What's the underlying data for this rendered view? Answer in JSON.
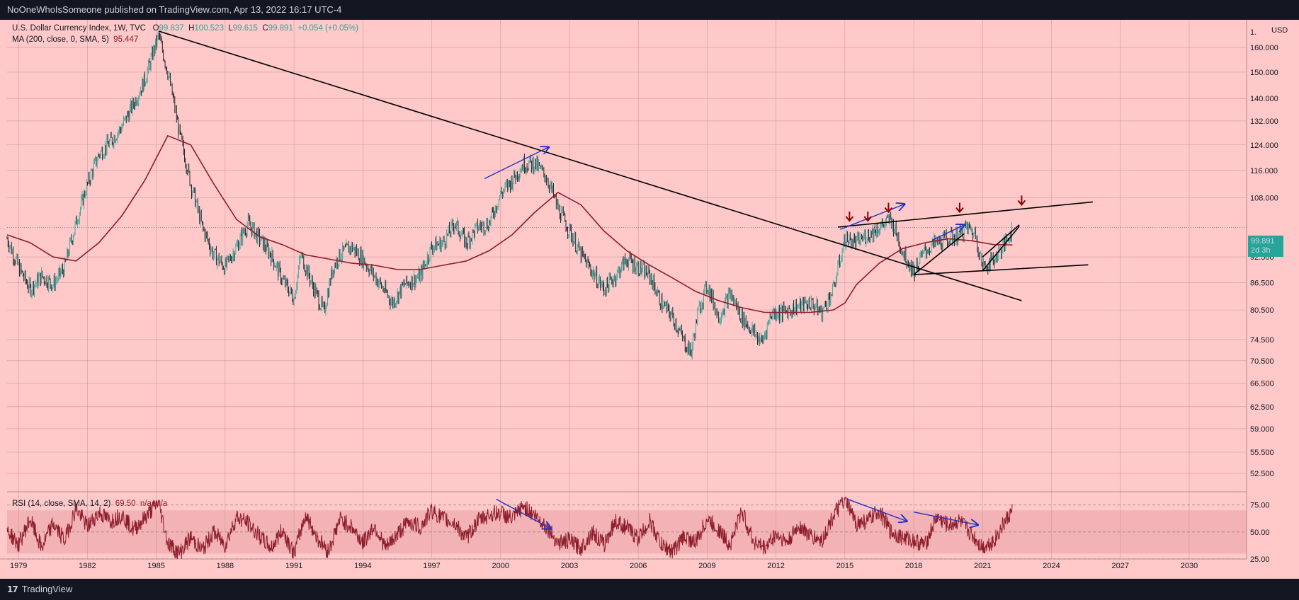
{
  "header": {
    "published": "NoOneWhoIsSomeone published on TradingView.com, Apr 13, 2022 16:17 UTC-4"
  },
  "footer": {
    "brand": "TradingView",
    "logo_icon": "tradingview-logo-icon"
  },
  "legend": {
    "symbol": "U.S. Dollar Currency Index, 1W, TVC",
    "open_label": "O",
    "open": "99.837",
    "high_label": "H",
    "high": "100.523",
    "low_label": "L",
    "low": "99.615",
    "close_label": "C",
    "close": "99.891",
    "change": "+0.054 (+0.05%)",
    "ma_label": "MA (200, close, 0, SMA, 5)",
    "ma_value": "95.447",
    "rsi_label": "RSI (14, close, SMA, 14, 2)",
    "rsi_value": "69.50",
    "rsi_na": "n/a",
    "rsi_na2": "n/a"
  },
  "price_axis": {
    "currency": "USD",
    "current_price": "99.891",
    "countdown": "2d 3h",
    "colors": {
      "background": "#ffc9c9",
      "up": "#26a69a",
      "down": "#131722",
      "ma": "#8e1c2a",
      "rsi": "#8e1c2a",
      "trend": "#000000",
      "arrow_blue": "#1f33c9",
      "arrow_red": "#8b0000"
    }
  },
  "chart_data": [
    {
      "type": "line",
      "panel": "price",
      "scale": "log",
      "title": "",
      "xlabel": "",
      "ylabel": "",
      "x_ticks": [
        "1979",
        "1982",
        "1985",
        "1988",
        "1991",
        "1994",
        "1997",
        "2000",
        "2003",
        "2006",
        "2009",
        "2012",
        "2015",
        "2018",
        "2021",
        "2024",
        "2027",
        "2030"
      ],
      "y_ticks": [
        "1.",
        "160.000",
        "150.000",
        "140.000",
        "132.000",
        "124.000",
        "116.000",
        "108.000",
        "99.891",
        "92.500",
        "86.500",
        "80.500",
        "74.500",
        "70.500",
        "66.500",
        "62.500",
        "59.000",
        "55.500",
        "52.500"
      ],
      "ylim": [
        50.5,
        172
      ],
      "xlim": [
        1978.5,
        2032.5
      ],
      "grid": true,
      "series": [
        {
          "x": [
            1978.5,
            1979.0,
            1979.5,
            1980.0,
            1980.5,
            1981.0,
            1981.5,
            1982.0,
            1982.5,
            1983.0,
            1983.5,
            1984.0,
            1984.5,
            1985.1,
            1985.5,
            1986.0,
            1986.5,
            1987.0,
            1987.5,
            1988.0,
            1988.5,
            1989.0,
            1989.5,
            1990.0,
            1990.5,
            1991.0,
            1991.3,
            1991.8,
            1992.3,
            1992.7,
            1993.0,
            1993.5,
            1994.0,
            1994.5,
            1995.3,
            1995.8,
            1996.5,
            1997.0,
            1997.5,
            1998.0,
            1998.5,
            1999.0,
            1999.5,
            2000.0,
            2000.5,
            2001.0,
            2001.5,
            2002.0,
            2002.5,
            2003.0,
            2003.5,
            2004.0,
            2004.5,
            2005.0,
            2005.5,
            2006.0,
            2006.5,
            2007.0,
            2007.5,
            2008.0,
            2008.3,
            2008.6,
            2009.0,
            2009.5,
            2010.0,
            2010.5,
            2011.0,
            2011.4,
            2011.8,
            2012.3,
            2012.8,
            2013.5,
            2014.0,
            2014.5,
            2015.0,
            2015.5,
            2016.0,
            2016.5,
            2017.0,
            2017.5,
            2018.0,
            2018.5,
            2019.0,
            2019.5,
            2020.0,
            2020.3,
            2020.7,
            2021.0,
            2021.5,
            2022.0,
            2022.3
          ],
          "y": [
            97,
            90,
            85,
            88,
            86,
            90,
            101,
            112,
            121,
            125,
            130,
            138,
            147,
            165,
            150,
            128,
            112,
            100,
            93,
            90,
            95,
            101,
            97,
            93,
            87,
            83,
            93,
            86,
            80,
            90,
            93,
            95,
            92,
            88,
            82,
            86,
            88,
            95,
            96,
            101,
            96,
            100,
            101,
            109,
            113,
            118,
            118,
            114,
            105,
            99,
            93,
            89,
            85,
            88,
            92,
            90,
            88,
            82,
            79,
            74,
            72,
            80,
            86,
            79,
            84,
            79,
            76,
            74,
            80,
            80,
            81,
            82,
            80,
            85,
            97,
            96,
            98,
            100,
            102,
            94,
            89,
            94,
            96,
            97,
            98,
            100,
            98,
            90,
            92,
            96,
            99.891
          ]
        }
      ],
      "moving_average": {
        "name": "MA (200, close, 0, SMA, 5)",
        "x": [
          1978.5,
          1979.5,
          1980.5,
          1981.5,
          1982.5,
          1983.5,
          1984.5,
          1985.5,
          1986.5,
          1987.5,
          1988.5,
          1989.5,
          1990.5,
          1991.5,
          1992.5,
          1993.5,
          1994.5,
          1995.5,
          1996.5,
          1997.5,
          1998.5,
          1999.5,
          2000.5,
          2001.5,
          2002.5,
          2003.5,
          2004.5,
          2005.5,
          2006.5,
          2007.5,
          2008.5,
          2009.5,
          2010.5,
          2011.5,
          2012.5,
          2013.5,
          2014.5,
          2015.0,
          2015.5,
          2016.5,
          2017.5,
          2018.5,
          2019.5,
          2020.5,
          2021.5,
          2022.3
        ],
        "y": [
          98,
          96,
          92.5,
          91.5,
          96,
          103,
          113,
          127,
          124,
          112,
          102,
          97.5,
          95.5,
          93,
          92,
          91,
          90.5,
          89.5,
          89.5,
          90.5,
          91.5,
          94,
          98,
          104,
          109.5,
          106,
          99,
          94,
          90.5,
          87.5,
          84.5,
          82.5,
          81,
          80,
          80,
          80,
          80.5,
          82,
          86,
          91,
          94.5,
          96,
          97,
          96.5,
          95.5,
          95.447
        ]
      }
    },
    {
      "type": "line",
      "panel": "rsi",
      "title": "",
      "ylim": [
        25,
        84
      ],
      "y_ticks": [
        "75.00",
        "50.00",
        "25.00"
      ],
      "bands": [
        30,
        70
      ],
      "series": [
        {
          "x": [
            1978.5,
            1979.0,
            1979.5,
            1980.0,
            1980.5,
            1981.0,
            1981.5,
            1982.0,
            1982.5,
            1983.0,
            1983.5,
            1984.0,
            1984.5,
            1985.1,
            1985.5,
            1986.0,
            1986.5,
            1987.0,
            1987.5,
            1988.0,
            1988.5,
            1989.0,
            1989.5,
            1990.0,
            1990.5,
            1991.0,
            1991.5,
            1992.0,
            1992.5,
            1993.0,
            1993.5,
            1994.0,
            1994.5,
            1995.0,
            1995.5,
            1996.0,
            1996.5,
            1997.0,
            1997.5,
            1998.0,
            1998.5,
            1999.0,
            1999.5,
            2000.0,
            2000.5,
            2001.0,
            2001.5,
            2002.0,
            2002.5,
            2003.0,
            2003.5,
            2004.0,
            2004.5,
            2005.0,
            2005.5,
            2006.0,
            2006.5,
            2007.0,
            2007.5,
            2008.0,
            2008.5,
            2009.0,
            2009.5,
            2010.0,
            2010.5,
            2011.0,
            2011.5,
            2012.0,
            2012.5,
            2013.0,
            2013.5,
            2014.0,
            2014.5,
            2015.0,
            2015.5,
            2016.0,
            2016.5,
            2017.0,
            2017.5,
            2018.0,
            2018.5,
            2019.0,
            2019.5,
            2020.0,
            2020.5,
            2021.0,
            2021.5,
            2022.0,
            2022.3
          ],
          "y": [
            52,
            38,
            62,
            35,
            58,
            42,
            72,
            55,
            68,
            60,
            66,
            52,
            63,
            78,
            40,
            30,
            45,
            33,
            50,
            38,
            64,
            58,
            46,
            35,
            52,
            30,
            66,
            45,
            32,
            62,
            55,
            40,
            56,
            35,
            48,
            60,
            54,
            70,
            62,
            58,
            44,
            60,
            66,
            68,
            62,
            74,
            65,
            55,
            40,
            42,
            35,
            50,
            38,
            60,
            54,
            44,
            60,
            38,
            32,
            46,
            40,
            62,
            52,
            38,
            70,
            42,
            35,
            48,
            40,
            56,
            46,
            42,
            65,
            80,
            58,
            60,
            70,
            50,
            45,
            42,
            38,
            64,
            56,
            60,
            48,
            36,
            42,
            60,
            69.5
          ]
        }
      ]
    }
  ],
  "annotations": {
    "trendlines": [
      {
        "name": "long-term-downtrend",
        "from": {
          "x": 1985.1,
          "y": 167
        },
        "to": {
          "x": 2022.7,
          "y": 82.5
        }
      },
      {
        "name": "upper-channel-line",
        "from": {
          "x": 2014.7,
          "y": 100
        },
        "to": {
          "x": 2025.8,
          "y": 106.8
        }
      },
      {
        "name": "lower-channel-line",
        "from": {
          "x": 2018.0,
          "y": 88.3
        },
        "to": {
          "x": 2025.6,
          "y": 90.6
        }
      },
      {
        "name": "rising-wedge-1-lower",
        "from": {
          "x": 2018.0,
          "y": 88.3
        },
        "to": {
          "x": 2020.2,
          "y": 98.3
        }
      },
      {
        "name": "rising-wedge-2-lower",
        "from": {
          "x": 2021.0,
          "y": 89.2
        },
        "to": {
          "x": 2022.6,
          "y": 100.2
        }
      },
      {
        "name": "rising-wedge-2-upper",
        "from": {
          "x": 2021.0,
          "y": 92.5
        },
        "to": {
          "x": 2022.6,
          "y": 100.6
        }
      }
    ],
    "blue_arrows_price": [
      {
        "from": {
          "x": 1999.3,
          "y": 113.5
        },
        "to": {
          "x": 2002.1,
          "y": 123.3
        }
      },
      {
        "from": {
          "x": 2014.8,
          "y": 99.4
        },
        "to": {
          "x": 2017.6,
          "y": 106.2
        }
      },
      {
        "from": {
          "x": 2018.8,
          "y": 96.6
        },
        "to": {
          "x": 2020.2,
          "y": 100.6
        }
      }
    ],
    "blue_arrows_rsi": [
      {
        "from": {
          "x": 1999.8,
          "y": 80.5
        },
        "to": {
          "x": 2002.2,
          "y": 53
        }
      },
      {
        "from": {
          "x": 2015.1,
          "y": 80.5
        },
        "to": {
          "x": 2017.7,
          "y": 60
        }
      },
      {
        "from": {
          "x": 2018.0,
          "y": 68.5
        },
        "to": {
          "x": 2020.8,
          "y": 56.5
        }
      }
    ],
    "red_down_arrows": [
      {
        "x": 2015.2,
        "y": 102.8
      },
      {
        "x": 2016.0,
        "y": 102.8
      },
      {
        "x": 2016.9,
        "y": 105.2
      },
      {
        "x": 2020.0,
        "y": 105.2
      },
      {
        "x": 2022.7,
        "y": 107.2
      }
    ]
  }
}
